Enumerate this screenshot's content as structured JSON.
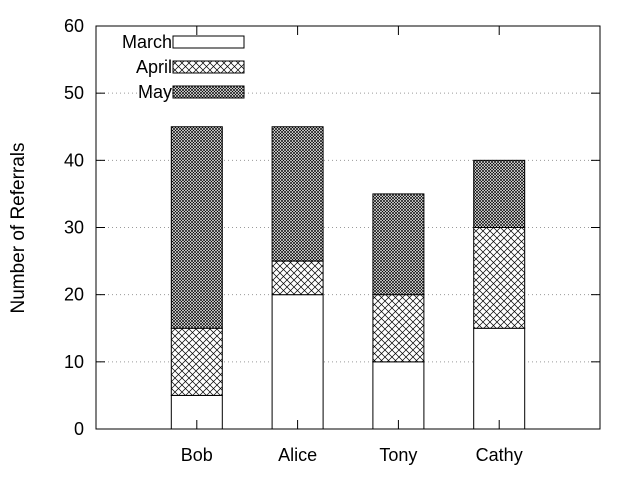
{
  "chart_data": {
    "type": "bar",
    "stacked": true,
    "categories": [
      "Bob",
      "Alice",
      "Tony",
      "Cathy"
    ],
    "series": [
      {
        "name": "March",
        "values": [
          5,
          20,
          10,
          15
        ],
        "fill": "blank"
      },
      {
        "name": "April",
        "values": [
          10,
          5,
          10,
          15
        ],
        "fill": "crosshatch"
      },
      {
        "name": "May",
        "values": [
          30,
          20,
          15,
          10
        ],
        "fill": "dense-crosshatch"
      }
    ],
    "xlabel": "",
    "ylabel": "Number of Referrals",
    "ylim": [
      0,
      60
    ],
    "yticks": [
      0,
      10,
      20,
      30,
      40,
      50,
      60
    ],
    "grid": "horizontal dotted",
    "legend_position": "top-left"
  },
  "colors": {
    "bar_outline": "#000000",
    "grid": "#9a9a9a",
    "background": "#ffffff"
  }
}
